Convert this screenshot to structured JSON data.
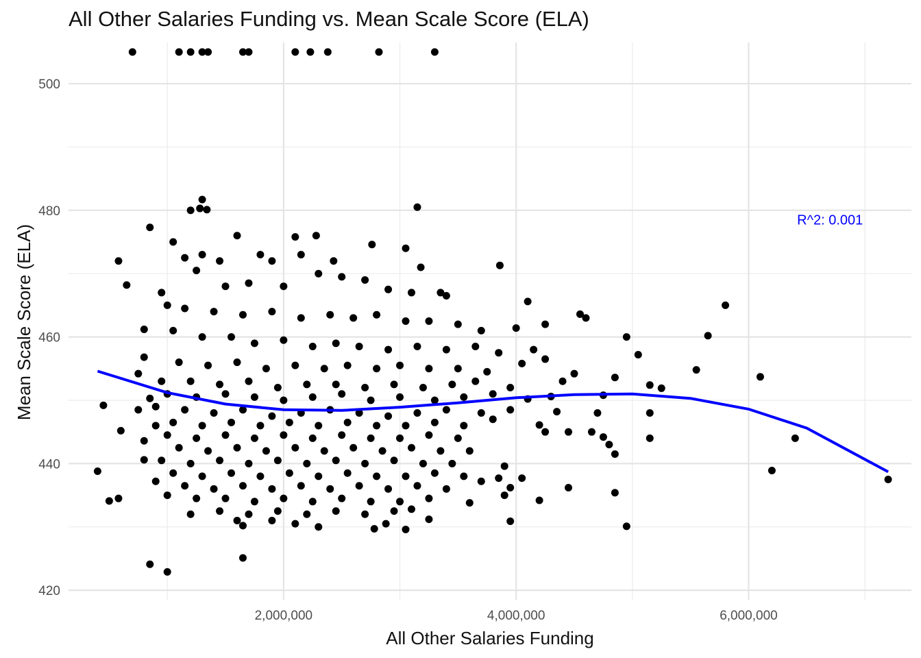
{
  "chart_data": {
    "type": "scatter",
    "title": "All Other Salaries Funding vs. Mean Scale Score (ELA)",
    "xlabel": "All Other Salaries Funding",
    "ylabel": "Mean Scale Score (ELA)",
    "xlim": [
      150000,
      7400000
    ],
    "ylim": [
      418.5,
      506.5
    ],
    "x_ticks": [
      {
        "value": 2000000,
        "label": "2,000,000"
      },
      {
        "value": 4000000,
        "label": "4,000,000"
      },
      {
        "value": 6000000,
        "label": "6,000,000"
      }
    ],
    "x_minor": [
      1000000,
      3000000,
      5000000,
      7000000
    ],
    "y_ticks": [
      {
        "value": 420,
        "label": "420"
      },
      {
        "value": 440,
        "label": "440"
      },
      {
        "value": 460,
        "label": "460"
      },
      {
        "value": 480,
        "label": "480"
      },
      {
        "value": 500,
        "label": "500"
      }
    ],
    "y_minor": [
      430,
      450,
      470,
      490
    ],
    "grid": true,
    "point_color": "#000000",
    "trend_color": "#0000ff",
    "annotation": {
      "text": "R^2:  0.001",
      "x": 6700000,
      "y": 478.5,
      "color": "#0000ff"
    },
    "trend_line": {
      "x": [
        400000,
        1000000,
        1500000,
        2000000,
        2500000,
        3000000,
        3500000,
        4000000,
        4500000,
        5000000,
        5500000,
        6000000,
        6500000,
        7200000
      ],
      "y": [
        454.6,
        451.2,
        449.4,
        448.5,
        448.4,
        448.9,
        449.6,
        450.4,
        450.9,
        451.0,
        450.3,
        448.6,
        445.6,
        438.7
      ]
    },
    "points": [
      {
        "x": 700000,
        "y": 505
      },
      {
        "x": 1100000,
        "y": 505
      },
      {
        "x": 1200000,
        "y": 505
      },
      {
        "x": 1300000,
        "y": 505
      },
      {
        "x": 1350000,
        "y": 505
      },
      {
        "x": 1650000,
        "y": 505
      },
      {
        "x": 1700000,
        "y": 505
      },
      {
        "x": 2100000,
        "y": 505
      },
      {
        "x": 2230000,
        "y": 505
      },
      {
        "x": 2380000,
        "y": 505
      },
      {
        "x": 2820000,
        "y": 505
      },
      {
        "x": 3300000,
        "y": 505
      },
      {
        "x": 1300000,
        "y": 481.7
      },
      {
        "x": 1280000,
        "y": 480.3
      },
      {
        "x": 1340000,
        "y": 480.1
      },
      {
        "x": 1200000,
        "y": 480.0
      },
      {
        "x": 3150000,
        "y": 480.5
      },
      {
        "x": 1050000,
        "y": 475
      },
      {
        "x": 1150000,
        "y": 472.5
      },
      {
        "x": 1300000,
        "y": 473
      },
      {
        "x": 1450000,
        "y": 472
      },
      {
        "x": 1600000,
        "y": 476
      },
      {
        "x": 1800000,
        "y": 473
      },
      {
        "x": 1900000,
        "y": 472
      },
      {
        "x": 2100000,
        "y": 475.8
      },
      {
        "x": 2150000,
        "y": 473
      },
      {
        "x": 2280000,
        "y": 476
      },
      {
        "x": 2430000,
        "y": 472
      },
      {
        "x": 2760000,
        "y": 474.6
      },
      {
        "x": 3050000,
        "y": 474
      },
      {
        "x": 3180000,
        "y": 471
      },
      {
        "x": 3860000,
        "y": 471.3
      },
      {
        "x": 850000,
        "y": 477.3
      },
      {
        "x": 580000,
        "y": 472
      },
      {
        "x": 650000,
        "y": 468.2
      },
      {
        "x": 1250000,
        "y": 470.5
      },
      {
        "x": 1500000,
        "y": 468
      },
      {
        "x": 1700000,
        "y": 468.5
      },
      {
        "x": 2000000,
        "y": 468
      },
      {
        "x": 2300000,
        "y": 470
      },
      {
        "x": 2500000,
        "y": 469.5
      },
      {
        "x": 2700000,
        "y": 469
      },
      {
        "x": 2900000,
        "y": 467.5
      },
      {
        "x": 3100000,
        "y": 467
      },
      {
        "x": 3350000,
        "y": 467
      },
      {
        "x": 3400000,
        "y": 466.5
      },
      {
        "x": 4100000,
        "y": 465.6
      },
      {
        "x": 4550000,
        "y": 463.6
      },
      {
        "x": 5800000,
        "y": 465
      },
      {
        "x": 950000,
        "y": 467
      },
      {
        "x": 1000000,
        "y": 465
      },
      {
        "x": 1150000,
        "y": 464.5
      },
      {
        "x": 1400000,
        "y": 464
      },
      {
        "x": 1650000,
        "y": 463.5
      },
      {
        "x": 1900000,
        "y": 464
      },
      {
        "x": 2150000,
        "y": 463
      },
      {
        "x": 2400000,
        "y": 463.5
      },
      {
        "x": 2600000,
        "y": 463
      },
      {
        "x": 2800000,
        "y": 463.5
      },
      {
        "x": 3050000,
        "y": 462.5
      },
      {
        "x": 3250000,
        "y": 462.5
      },
      {
        "x": 3500000,
        "y": 462
      },
      {
        "x": 3700000,
        "y": 461
      },
      {
        "x": 4000000,
        "y": 461.4
      },
      {
        "x": 4250000,
        "y": 462
      },
      {
        "x": 4600000,
        "y": 463
      },
      {
        "x": 5650000,
        "y": 460.2
      },
      {
        "x": 800000,
        "y": 461.2
      },
      {
        "x": 1050000,
        "y": 461
      },
      {
        "x": 1300000,
        "y": 460
      },
      {
        "x": 1550000,
        "y": 460
      },
      {
        "x": 1750000,
        "y": 459
      },
      {
        "x": 2000000,
        "y": 459.5
      },
      {
        "x": 2250000,
        "y": 458.5
      },
      {
        "x": 2450000,
        "y": 459
      },
      {
        "x": 2650000,
        "y": 458.5
      },
      {
        "x": 2900000,
        "y": 458
      },
      {
        "x": 3150000,
        "y": 458.5
      },
      {
        "x": 3400000,
        "y": 458
      },
      {
        "x": 3650000,
        "y": 458.5
      },
      {
        "x": 3850000,
        "y": 457.5
      },
      {
        "x": 4150000,
        "y": 458
      },
      {
        "x": 4950000,
        "y": 460
      },
      {
        "x": 5050000,
        "y": 457.2
      },
      {
        "x": 800000,
        "y": 456.8
      },
      {
        "x": 1100000,
        "y": 456
      },
      {
        "x": 1350000,
        "y": 455.5
      },
      {
        "x": 1600000,
        "y": 456
      },
      {
        "x": 1850000,
        "y": 455
      },
      {
        "x": 2100000,
        "y": 455.5
      },
      {
        "x": 2350000,
        "y": 455
      },
      {
        "x": 2550000,
        "y": 455.5
      },
      {
        "x": 2800000,
        "y": 455
      },
      {
        "x": 3000000,
        "y": 455.5
      },
      {
        "x": 3250000,
        "y": 455
      },
      {
        "x": 3500000,
        "y": 455
      },
      {
        "x": 3750000,
        "y": 454.5
      },
      {
        "x": 4050000,
        "y": 455.8
      },
      {
        "x": 4250000,
        "y": 456.5
      },
      {
        "x": 4500000,
        "y": 454.2
      },
      {
        "x": 4850000,
        "y": 453.6
      },
      {
        "x": 5550000,
        "y": 454.8
      },
      {
        "x": 6100000,
        "y": 453.7
      },
      {
        "x": 750000,
        "y": 454.2
      },
      {
        "x": 950000,
        "y": 453
      },
      {
        "x": 1200000,
        "y": 453
      },
      {
        "x": 1450000,
        "y": 452.5
      },
      {
        "x": 1700000,
        "y": 453
      },
      {
        "x": 1950000,
        "y": 452
      },
      {
        "x": 2200000,
        "y": 452.5
      },
      {
        "x": 2450000,
        "y": 452.5
      },
      {
        "x": 2700000,
        "y": 452
      },
      {
        "x": 2950000,
        "y": 452.5
      },
      {
        "x": 3200000,
        "y": 452
      },
      {
        "x": 3450000,
        "y": 452.5
      },
      {
        "x": 3650000,
        "y": 453
      },
      {
        "x": 3950000,
        "y": 452
      },
      {
        "x": 4400000,
        "y": 453
      },
      {
        "x": 5150000,
        "y": 452.4
      },
      {
        "x": 5250000,
        "y": 451.9
      },
      {
        "x": 450000,
        "y": 449.2
      },
      {
        "x": 1000000,
        "y": 451
      },
      {
        "x": 1250000,
        "y": 450.5
      },
      {
        "x": 1500000,
        "y": 451
      },
      {
        "x": 1750000,
        "y": 450.5
      },
      {
        "x": 2000000,
        "y": 450
      },
      {
        "x": 2250000,
        "y": 450.5
      },
      {
        "x": 2500000,
        "y": 451
      },
      {
        "x": 2750000,
        "y": 450
      },
      {
        "x": 3000000,
        "y": 450.5
      },
      {
        "x": 3300000,
        "y": 450
      },
      {
        "x": 3550000,
        "y": 450.5
      },
      {
        "x": 3800000,
        "y": 451
      },
      {
        "x": 4100000,
        "y": 450.2
      },
      {
        "x": 4300000,
        "y": 450.6
      },
      {
        "x": 4750000,
        "y": 450.8
      },
      {
        "x": 850000,
        "y": 450.3
      },
      {
        "x": 900000,
        "y": 449
      },
      {
        "x": 1150000,
        "y": 448.5
      },
      {
        "x": 1400000,
        "y": 448
      },
      {
        "x": 1650000,
        "y": 448.5
      },
      {
        "x": 1900000,
        "y": 447.5
      },
      {
        "x": 2150000,
        "y": 448
      },
      {
        "x": 2400000,
        "y": 448.5
      },
      {
        "x": 2650000,
        "y": 448
      },
      {
        "x": 2900000,
        "y": 447.5
      },
      {
        "x": 3150000,
        "y": 448
      },
      {
        "x": 3400000,
        "y": 448.5
      },
      {
        "x": 3700000,
        "y": 448
      },
      {
        "x": 3950000,
        "y": 448.5
      },
      {
        "x": 4350000,
        "y": 448.2
      },
      {
        "x": 4700000,
        "y": 448
      },
      {
        "x": 5150000,
        "y": 448
      },
      {
        "x": 750000,
        "y": 448.5
      },
      {
        "x": 1050000,
        "y": 446.5
      },
      {
        "x": 1300000,
        "y": 446
      },
      {
        "x": 1550000,
        "y": 446.5
      },
      {
        "x": 1800000,
        "y": 446
      },
      {
        "x": 2050000,
        "y": 446.5
      },
      {
        "x": 2300000,
        "y": 446
      },
      {
        "x": 2550000,
        "y": 446.5
      },
      {
        "x": 2800000,
        "y": 446
      },
      {
        "x": 3050000,
        "y": 446
      },
      {
        "x": 3300000,
        "y": 446.5
      },
      {
        "x": 3550000,
        "y": 446
      },
      {
        "x": 3800000,
        "y": 447
      },
      {
        "x": 4200000,
        "y": 446.1
      },
      {
        "x": 900000,
        "y": 446
      },
      {
        "x": 600000,
        "y": 445.2
      },
      {
        "x": 1000000,
        "y": 444.5
      },
      {
        "x": 1250000,
        "y": 444
      },
      {
        "x": 1500000,
        "y": 444.5
      },
      {
        "x": 1750000,
        "y": 444
      },
      {
        "x": 2000000,
        "y": 444.5
      },
      {
        "x": 2250000,
        "y": 444
      },
      {
        "x": 2500000,
        "y": 444.5
      },
      {
        "x": 2750000,
        "y": 444
      },
      {
        "x": 3000000,
        "y": 444
      },
      {
        "x": 3250000,
        "y": 444.5
      },
      {
        "x": 3500000,
        "y": 444
      },
      {
        "x": 4250000,
        "y": 445
      },
      {
        "x": 4450000,
        "y": 445
      },
      {
        "x": 4650000,
        "y": 445
      },
      {
        "x": 4750000,
        "y": 444.2
      },
      {
        "x": 5150000,
        "y": 444
      },
      {
        "x": 6400000,
        "y": 444
      },
      {
        "x": 800000,
        "y": 443.6
      },
      {
        "x": 1100000,
        "y": 442.5
      },
      {
        "x": 1350000,
        "y": 442
      },
      {
        "x": 1600000,
        "y": 442.5
      },
      {
        "x": 1850000,
        "y": 442
      },
      {
        "x": 2100000,
        "y": 442.5
      },
      {
        "x": 2350000,
        "y": 442
      },
      {
        "x": 2600000,
        "y": 442.5
      },
      {
        "x": 2850000,
        "y": 442
      },
      {
        "x": 3100000,
        "y": 442.5
      },
      {
        "x": 3350000,
        "y": 442
      },
      {
        "x": 3600000,
        "y": 442
      },
      {
        "x": 4800000,
        "y": 443
      },
      {
        "x": 4850000,
        "y": 441.5
      },
      {
        "x": 950000,
        "y": 440.5
      },
      {
        "x": 1200000,
        "y": 440
      },
      {
        "x": 1450000,
        "y": 440.5
      },
      {
        "x": 1700000,
        "y": 440
      },
      {
        "x": 1950000,
        "y": 440.5
      },
      {
        "x": 2200000,
        "y": 440
      },
      {
        "x": 2450000,
        "y": 440.5
      },
      {
        "x": 2700000,
        "y": 440
      },
      {
        "x": 2950000,
        "y": 440.5
      },
      {
        "x": 3200000,
        "y": 440
      },
      {
        "x": 3450000,
        "y": 440
      },
      {
        "x": 3900000,
        "y": 439.6
      },
      {
        "x": 800000,
        "y": 440.6
      },
      {
        "x": 400000,
        "y": 438.8
      },
      {
        "x": 6200000,
        "y": 438.9
      },
      {
        "x": 1050000,
        "y": 438.5
      },
      {
        "x": 1300000,
        "y": 438
      },
      {
        "x": 1550000,
        "y": 438.5
      },
      {
        "x": 1800000,
        "y": 438
      },
      {
        "x": 2050000,
        "y": 438.5
      },
      {
        "x": 2300000,
        "y": 438
      },
      {
        "x": 2550000,
        "y": 438.5
      },
      {
        "x": 2800000,
        "y": 438
      },
      {
        "x": 3050000,
        "y": 438
      },
      {
        "x": 3300000,
        "y": 438.5
      },
      {
        "x": 3550000,
        "y": 438
      },
      {
        "x": 3850000,
        "y": 437.7
      },
      {
        "x": 4050000,
        "y": 437.7
      },
      {
        "x": 3700000,
        "y": 437.2
      },
      {
        "x": 900000,
        "y": 437.2
      },
      {
        "x": 7200000,
        "y": 437.5
      },
      {
        "x": 1150000,
        "y": 436.5
      },
      {
        "x": 1400000,
        "y": 436
      },
      {
        "x": 1650000,
        "y": 436.5
      },
      {
        "x": 1900000,
        "y": 436
      },
      {
        "x": 2150000,
        "y": 436.5
      },
      {
        "x": 2400000,
        "y": 436
      },
      {
        "x": 2650000,
        "y": 436.5
      },
      {
        "x": 2900000,
        "y": 436
      },
      {
        "x": 3150000,
        "y": 436.5
      },
      {
        "x": 3400000,
        "y": 436
      },
      {
        "x": 3950000,
        "y": 436.2
      },
      {
        "x": 4450000,
        "y": 436.2
      },
      {
        "x": 1000000,
        "y": 435
      },
      {
        "x": 1250000,
        "y": 434.5
      },
      {
        "x": 1500000,
        "y": 434.5
      },
      {
        "x": 1750000,
        "y": 434
      },
      {
        "x": 2000000,
        "y": 434.5
      },
      {
        "x": 2250000,
        "y": 434
      },
      {
        "x": 2500000,
        "y": 434.5
      },
      {
        "x": 2750000,
        "y": 434
      },
      {
        "x": 3000000,
        "y": 434
      },
      {
        "x": 3250000,
        "y": 434.5
      },
      {
        "x": 3900000,
        "y": 435
      },
      {
        "x": 4850000,
        "y": 435.4
      },
      {
        "x": 500000,
        "y": 434.1
      },
      {
        "x": 580000,
        "y": 434.5
      },
      {
        "x": 4200000,
        "y": 434.2
      },
      {
        "x": 3600000,
        "y": 433.8
      },
      {
        "x": 1200000,
        "y": 432
      },
      {
        "x": 1450000,
        "y": 432.5
      },
      {
        "x": 1700000,
        "y": 432
      },
      {
        "x": 1950000,
        "y": 432.5
      },
      {
        "x": 2200000,
        "y": 432
      },
      {
        "x": 2450000,
        "y": 432.5
      },
      {
        "x": 2700000,
        "y": 432
      },
      {
        "x": 2950000,
        "y": 432.5
      },
      {
        "x": 3100000,
        "y": 432.8
      },
      {
        "x": 1600000,
        "y": 431
      },
      {
        "x": 1900000,
        "y": 431
      },
      {
        "x": 2100000,
        "y": 430.5
      },
      {
        "x": 2300000,
        "y": 430
      },
      {
        "x": 2780000,
        "y": 429.7
      },
      {
        "x": 2880000,
        "y": 430.5
      },
      {
        "x": 3050000,
        "y": 429.6
      },
      {
        "x": 3250000,
        "y": 431.2
      },
      {
        "x": 1650000,
        "y": 430.2
      },
      {
        "x": 3950000,
        "y": 430.9
      },
      {
        "x": 4950000,
        "y": 430.1
      },
      {
        "x": 850000,
        "y": 424.1
      },
      {
        "x": 1000000,
        "y": 422.9
      },
      {
        "x": 1650000,
        "y": 425.1
      }
    ]
  }
}
